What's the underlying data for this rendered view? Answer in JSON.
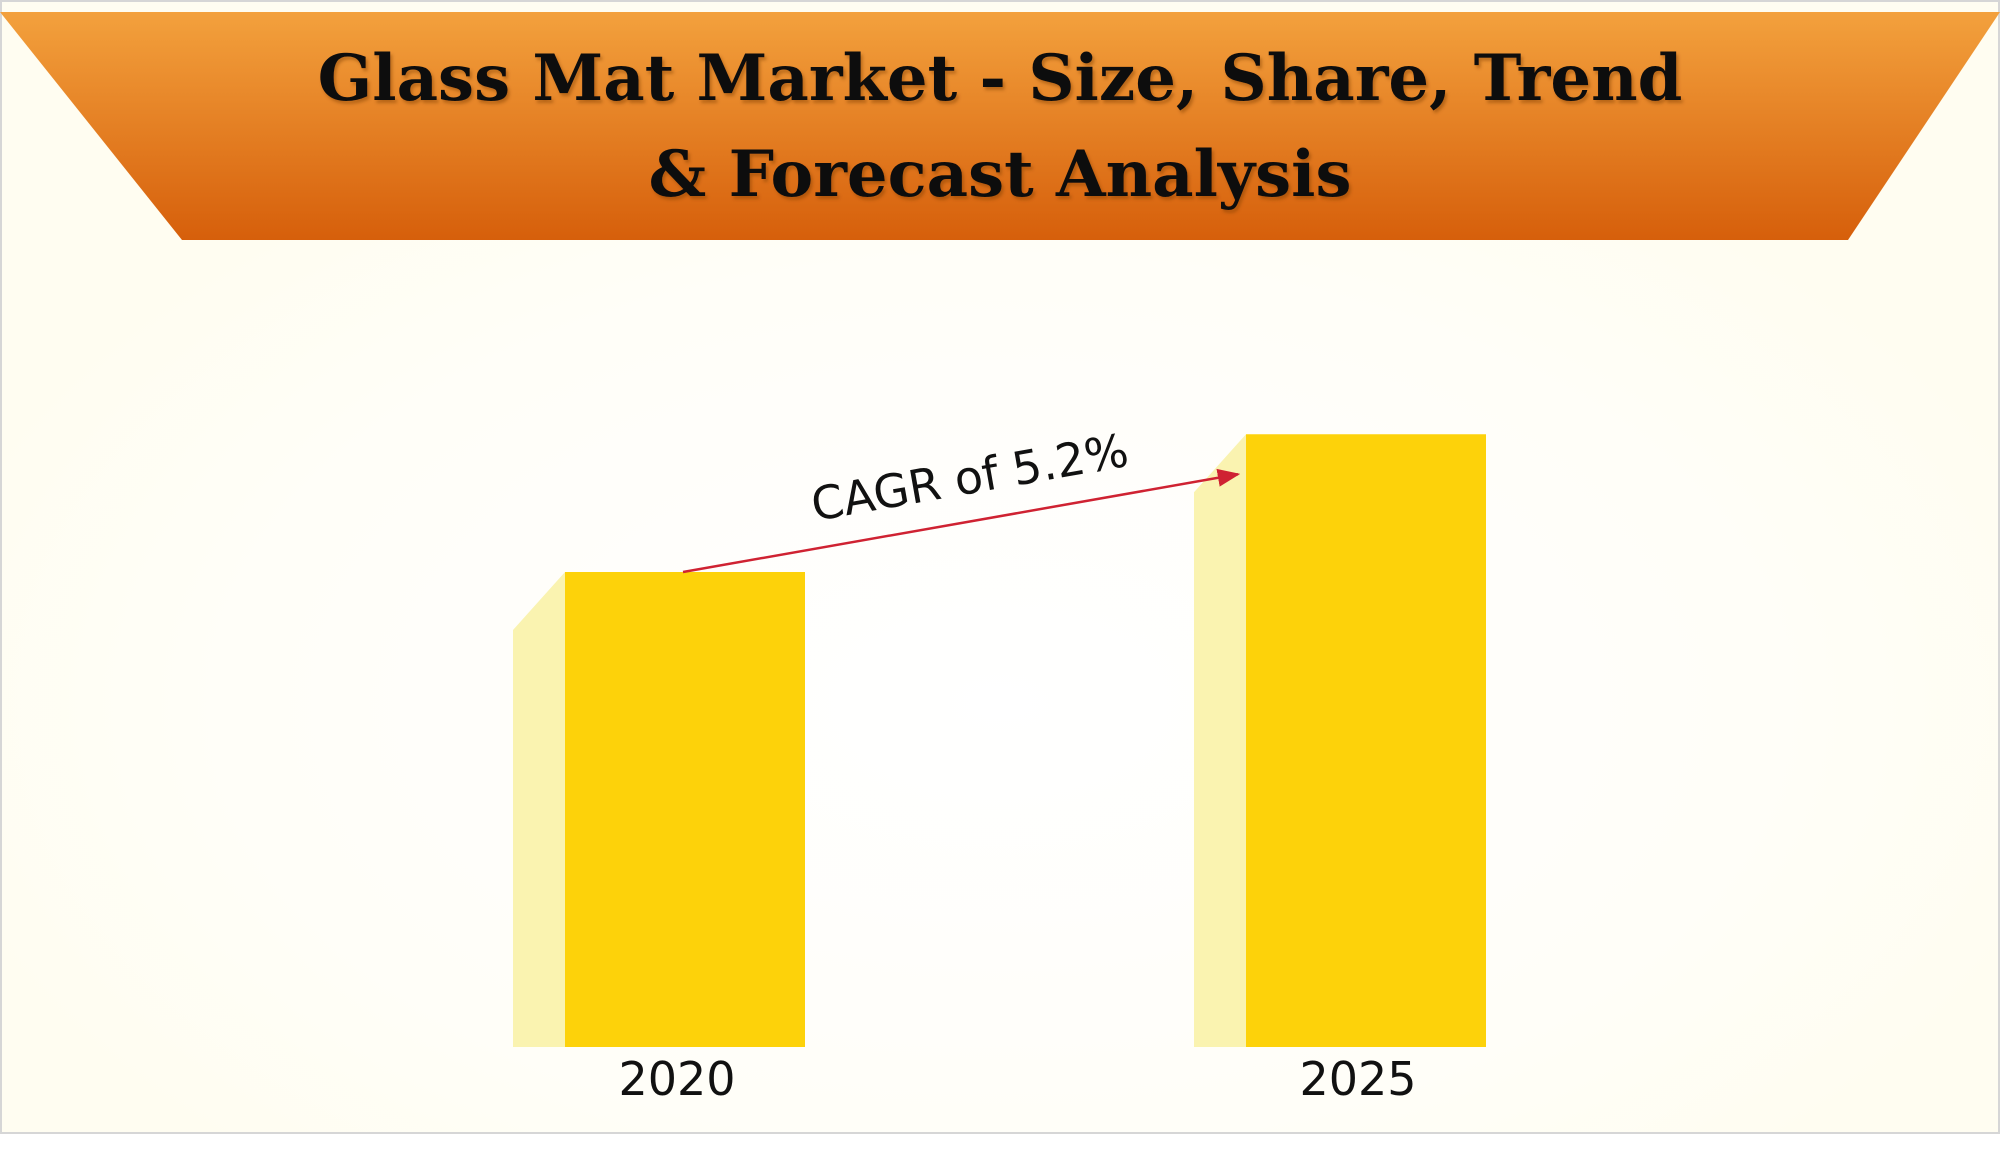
{
  "title_line1": "Glass Mat Market - Size, Share, Trend",
  "title_line2": "& Forecast Analysis",
  "annotation": "CAGR of 5.2%",
  "colors": {
    "bar_face": "#fdd20a",
    "bar_side": "#faf3b0",
    "banner_top": "#f3a13d",
    "banner_bottom": "#d65f0b",
    "arrow": "#cf2232",
    "background": "#fffdf1"
  },
  "chart_data": {
    "type": "bar",
    "categories": [
      "2020",
      "2025"
    ],
    "values": [
      1.0,
      1.29
    ],
    "annotations": [
      "CAGR of 5.2%"
    ]
  }
}
